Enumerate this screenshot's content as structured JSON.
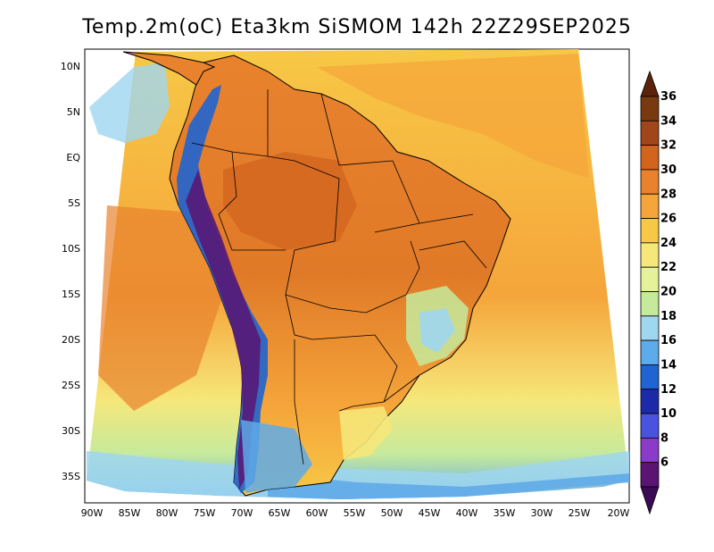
{
  "title": "Temp.2m(oC) Eta3km SiSMOM 142h 22Z29SEP2025",
  "lat_labels": [
    "10N",
    "5N",
    "EQ",
    "5S",
    "10S",
    "15S",
    "20S",
    "25S",
    "30S",
    "35S"
  ],
  "lon_labels": [
    "90W",
    "85W",
    "80W",
    "75W",
    "70W",
    "65W",
    "60W",
    "55W",
    "50W",
    "45W",
    "40W",
    "35W",
    "30W",
    "25W",
    "20W"
  ],
  "colorbar": {
    "labels": [
      "36",
      "34",
      "32",
      "30",
      "28",
      "26",
      "24",
      "22",
      "20",
      "18",
      "16",
      "14",
      "12",
      "10",
      "8",
      "6"
    ],
    "colors": [
      "#7a3a10",
      "#a0461a",
      "#d2641e",
      "#e8822d",
      "#f5a53a",
      "#f7c846",
      "#f6e77a",
      "#e6f29a",
      "#c6ea9c",
      "#9fd6f0",
      "#5faae8",
      "#1f64d2",
      "#1c2aa8",
      "#4a52e0",
      "#8a3cc8",
      "#5a1472"
    ]
  }
}
